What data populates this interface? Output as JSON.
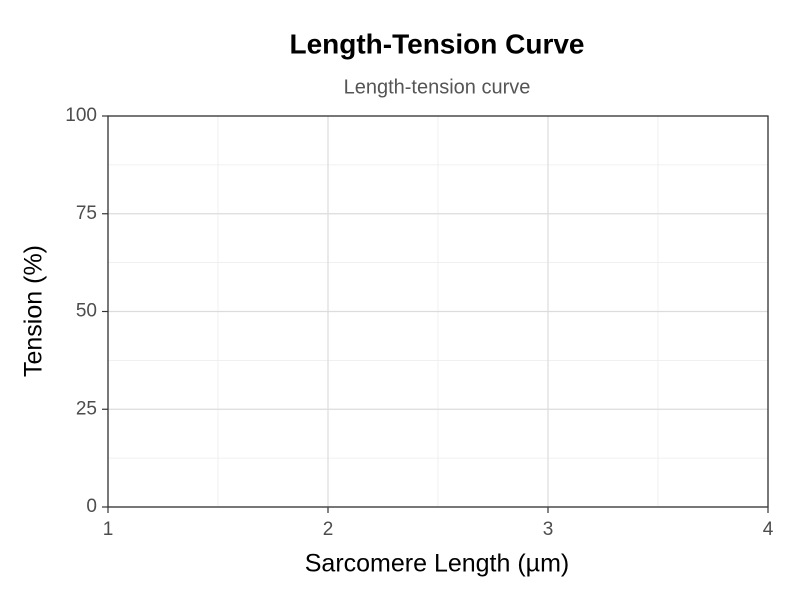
{
  "chart_data": {
    "type": "line",
    "title": "Length-Tension Curve",
    "subtitle": "Length-tension curve",
    "xlabel": "Sarcomere Length (µm)",
    "ylabel": "Tension (%)",
    "xlim": [
      1,
      4
    ],
    "xticks": [
      1,
      2,
      3,
      4
    ],
    "ylim": [
      0,
      100
    ],
    "yticks": [
      0,
      25,
      50,
      75,
      100
    ],
    "grid": true
  }
}
